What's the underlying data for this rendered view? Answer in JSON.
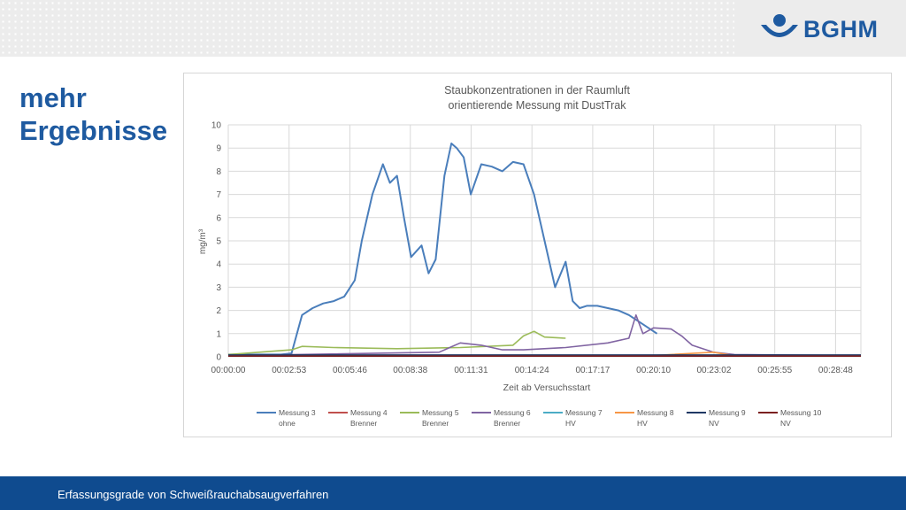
{
  "slide": {
    "title": "mehr\nErgebnisse",
    "footer": "Erfassungsgrade von Schweißrauchabsaugverfahren",
    "logo_text": "BGHM",
    "accent_color": "#1e5aa0",
    "footer_color": "#0f4b8f"
  },
  "chart_data": {
    "type": "line",
    "title": "Staubkonzentrationen in der Raumluft",
    "subtitle": "orientierende Messung mit DustTrak",
    "xlabel": "Zeit ab Versuchsstart",
    "ylabel": "mg/m³",
    "ylim": [
      0,
      10
    ],
    "yticks": [
      "0",
      "1",
      "2",
      "3",
      "4",
      "5",
      "6",
      "7",
      "8",
      "9",
      "10"
    ],
    "xlim": [
      "00:00:00",
      "00:30:00"
    ],
    "xticks": [
      "00:00:00",
      "00:02:53",
      "00:05:46",
      "00:08:38",
      "00:11:31",
      "00:14:24",
      "00:17:17",
      "00:20:10",
      "00:23:02",
      "00:25:55",
      "00:28:48"
    ],
    "grid": true,
    "legend_position": "bottom",
    "series": [
      {
        "name": "Messung 3",
        "label2": "ohne",
        "color": "#4a7ebb",
        "x": [
          "00:00:00",
          "00:02:30",
          "00:03:00",
          "00:03:30",
          "00:04:00",
          "00:04:30",
          "00:05:00",
          "00:05:30",
          "00:06:00",
          "00:06:20",
          "00:06:50",
          "00:07:20",
          "00:07:40",
          "00:08:00",
          "00:08:20",
          "00:08:40",
          "00:09:10",
          "00:09:30",
          "00:09:50",
          "00:10:15",
          "00:10:35",
          "00:10:50",
          "00:11:10",
          "00:11:30",
          "00:12:00",
          "00:12:30",
          "00:13:00",
          "00:13:30",
          "00:14:00",
          "00:14:30",
          "00:15:00",
          "00:15:30",
          "00:16:00",
          "00:16:20",
          "00:16:40",
          "00:17:00",
          "00:17:30",
          "00:18:00",
          "00:18:30",
          "00:19:00",
          "00:19:30",
          "00:20:00",
          "00:20:20"
        ],
        "y": [
          0.1,
          0.1,
          0.15,
          1.8,
          2.1,
          2.3,
          2.4,
          2.6,
          3.3,
          5.0,
          7.0,
          8.3,
          7.5,
          7.8,
          6.0,
          4.3,
          4.8,
          3.6,
          4.2,
          7.8,
          9.2,
          9.0,
          8.6,
          7.0,
          8.3,
          8.2,
          8.0,
          8.4,
          8.3,
          7.0,
          5.0,
          3.0,
          4.1,
          2.4,
          2.1,
          2.2,
          2.2,
          2.1,
          2.0,
          1.8,
          1.5,
          1.2,
          1.0
        ]
      },
      {
        "name": "Messung 4",
        "label2": "Brenner",
        "color": "#c0504d",
        "x": [
          "00:00:00",
          "00:10:00",
          "00:20:00",
          "00:30:00"
        ],
        "y": [
          0.05,
          0.05,
          0.05,
          0.05
        ]
      },
      {
        "name": "Messung 5",
        "label2": "Brenner",
        "color": "#9bbb59",
        "x": [
          "00:00:00",
          "00:03:00",
          "00:03:30",
          "00:05:00",
          "00:08:00",
          "00:11:00",
          "00:13:30",
          "00:14:00",
          "00:14:30",
          "00:15:00",
          "00:16:00"
        ],
        "y": [
          0.1,
          0.3,
          0.45,
          0.4,
          0.35,
          0.4,
          0.5,
          0.9,
          1.1,
          0.85,
          0.8
        ]
      },
      {
        "name": "Messung 6",
        "label2": "Brenner",
        "color": "#8064a2",
        "x": [
          "00:00:00",
          "00:10:00",
          "00:11:00",
          "00:12:00",
          "00:13:00",
          "00:14:00",
          "00:16:00",
          "00:18:00",
          "00:19:00",
          "00:19:20",
          "00:19:40",
          "00:20:10",
          "00:21:00",
          "00:21:30",
          "00:22:00",
          "00:23:00",
          "00:24:00",
          "00:30:00"
        ],
        "y": [
          0.05,
          0.2,
          0.6,
          0.5,
          0.3,
          0.3,
          0.4,
          0.6,
          0.8,
          1.8,
          1.0,
          1.25,
          1.2,
          0.9,
          0.5,
          0.2,
          0.1,
          0.05
        ]
      },
      {
        "name": "Messung 7",
        "label2": "HV",
        "color": "#4bacc6",
        "x": [
          "00:00:00",
          "00:30:00"
        ],
        "y": [
          0.05,
          0.05
        ]
      },
      {
        "name": "Messung 8",
        "label2": "HV",
        "color": "#f79646",
        "x": [
          "00:00:00",
          "00:20:00",
          "00:23:00",
          "00:24:00",
          "00:30:00"
        ],
        "y": [
          0.05,
          0.05,
          0.2,
          0.05,
          0.05
        ]
      },
      {
        "name": "Messung 9",
        "label2": "NV",
        "color": "#1f3864",
        "x": [
          "00:00:00",
          "00:30:00"
        ],
        "y": [
          0.08,
          0.08
        ]
      },
      {
        "name": "Messung 10",
        "label2": "NV",
        "color": "#7b2020",
        "x": [
          "00:00:00",
          "00:30:00"
        ],
        "y": [
          0.03,
          0.03
        ]
      }
    ]
  }
}
